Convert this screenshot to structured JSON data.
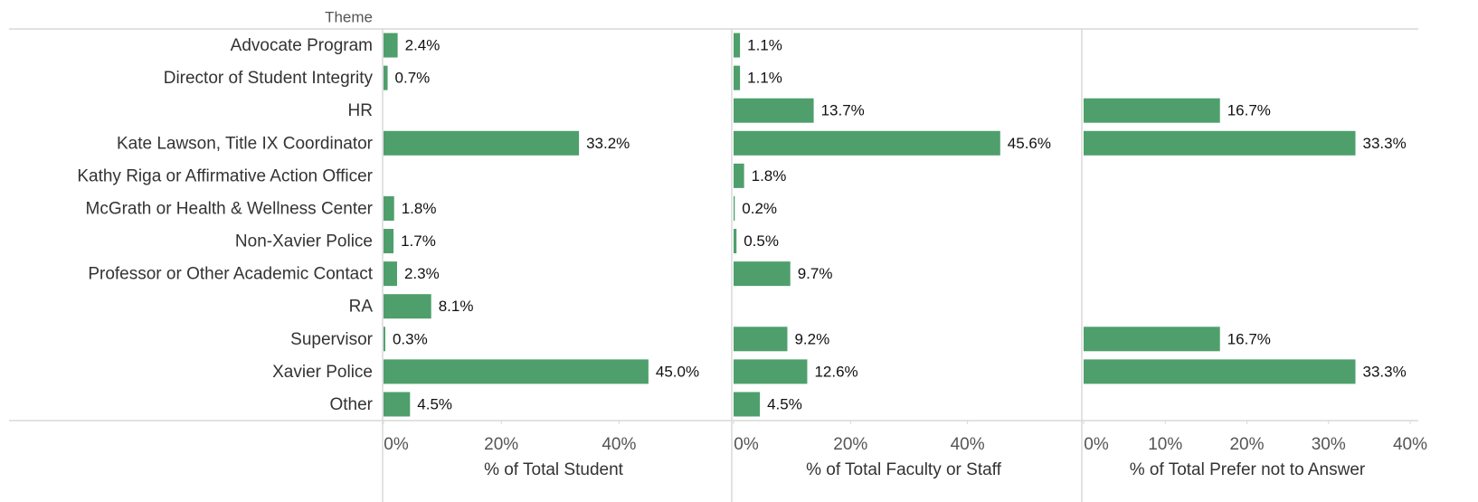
{
  "chart_data": {
    "type": "bar",
    "header": "Theme",
    "color": "#4e9f6c",
    "categories": [
      "Advocate Program",
      "Director of Student Integrity",
      "HR",
      "Kate Lawson, Title IX Coordinator",
      "Kathy Riga or Affirmative Action Officer",
      "McGrath or Health & Wellness Center",
      "Non-Xavier Police",
      "Professor or Other Academic Contact",
      "RA",
      "Supervisor",
      "Xavier Police",
      "Other"
    ],
    "series": [
      {
        "name": "% of Total Student",
        "color": "#4e9f6c",
        "values": [
          2.4,
          0.7,
          null,
          33.2,
          null,
          1.8,
          1.7,
          2.3,
          8.1,
          0.3,
          45.0,
          4.5
        ],
        "value_labels": [
          "2.4%",
          "0.7%",
          null,
          "33.2%",
          null,
          "1.8%",
          "1.7%",
          "2.3%",
          "8.1%",
          "0.3%",
          "45.0%",
          "4.5%"
        ],
        "xlim": [
          0,
          59
        ],
        "xticks": [
          {
            "value": 0,
            "label": "0%"
          },
          {
            "value": 20,
            "label": "20%"
          },
          {
            "value": 40,
            "label": "40%"
          }
        ]
      },
      {
        "name": "% of Total Faculty or Staff",
        "color": "#4e9f6c",
        "values": [
          1.1,
          1.1,
          13.7,
          45.6,
          1.8,
          0.2,
          0.5,
          9.7,
          null,
          9.2,
          12.6,
          4.5
        ],
        "value_labels": [
          "1.1%",
          "1.1%",
          "13.7%",
          "45.6%",
          "1.8%",
          "0.2%",
          "0.5%",
          "9.7%",
          null,
          "9.2%",
          "12.6%",
          "4.5%"
        ],
        "xlim": [
          0,
          59.4
        ],
        "xticks": [
          {
            "value": 0,
            "label": "0%"
          },
          {
            "value": 20,
            "label": "20%"
          },
          {
            "value": 40,
            "label": "40%"
          }
        ]
      },
      {
        "name": "% of Total Prefer not to Answer",
        "color": "#4e9f6c",
        "values": [
          null,
          null,
          16.7,
          33.3,
          null,
          null,
          null,
          null,
          null,
          16.7,
          33.3,
          null
        ],
        "value_labels": [
          null,
          null,
          "16.7%",
          "33.3%",
          null,
          null,
          null,
          null,
          null,
          "16.7%",
          "33.3%",
          null
        ],
        "xlim": [
          0,
          41
        ],
        "xticks": [
          {
            "value": 0,
            "label": "0%"
          },
          {
            "value": 10,
            "label": "10%"
          },
          {
            "value": 20,
            "label": "20%"
          },
          {
            "value": 30,
            "label": "30%"
          },
          {
            "value": 40,
            "label": "40%"
          }
        ]
      }
    ]
  }
}
